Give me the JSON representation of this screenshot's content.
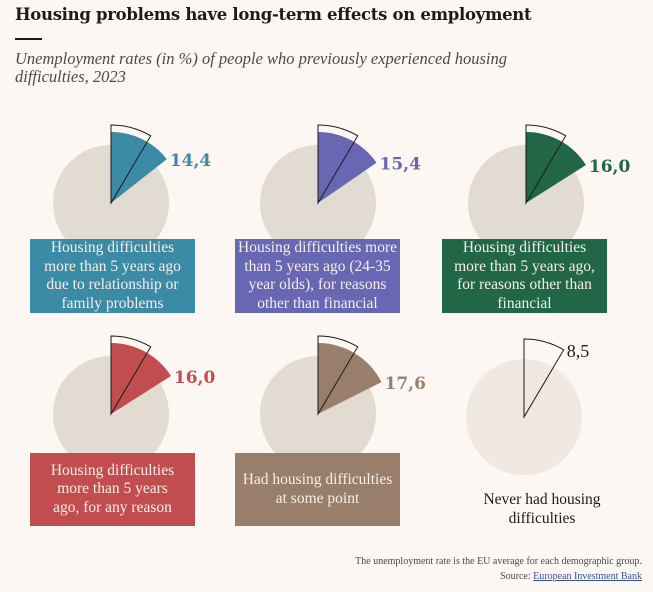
{
  "header": {
    "title": "Housing problems have long-term effects on employment",
    "subtitle": "Unemployment rates (in %) of people who previously experienced housing difficulties, 2023"
  },
  "footer": {
    "note": "The unemployment rate is the EU average for each demographic group.",
    "source_prefix": "Source: ",
    "source_link": "European Investment Bank"
  },
  "colors": {
    "background": "#fcf7f3",
    "circle": "#e2dbd1",
    "circle_light": "#efe8e3",
    "outline": "#1b1b1b"
  },
  "chart_data": {
    "type": "pie",
    "title": "Housing problems have long-term effects on employment",
    "subtitle": "Unemployment rates (in %) of people who previously experienced housing difficulties, 2023",
    "unit": "%",
    "reference": {
      "name": "Never had housing difficulties",
      "value": 8.5
    },
    "series": [
      {
        "name": "Housing difficulties more than 5 years ago due to relationship or family problems",
        "value": 14.4,
        "label": "14,4",
        "color": "#3b8aa6"
      },
      {
        "name": "Housing difficulties more than 5 years ago (24-35 year olds), for reasons other than financial",
        "value": 15.4,
        "label": "15,4",
        "color": "#6767b3"
      },
      {
        "name": "Housing difficulties more than 5 years ago, for reasons other than financial",
        "value": 16.0,
        "label": "16,0",
        "color": "#216647"
      },
      {
        "name": "Housing difficulties more than 5 years ago, for any reason",
        "value": 16.0,
        "label": "16,0",
        "color": "#c24d4e"
      },
      {
        "name": "Had housing difficulties at some point",
        "value": 17.6,
        "label": "17,6",
        "color": "#9a7e6c"
      },
      {
        "name": "Never had housing difficulties",
        "value": 8.5,
        "label": "8,5",
        "color": "#1b1b1b",
        "is_reference": true
      }
    ]
  }
}
